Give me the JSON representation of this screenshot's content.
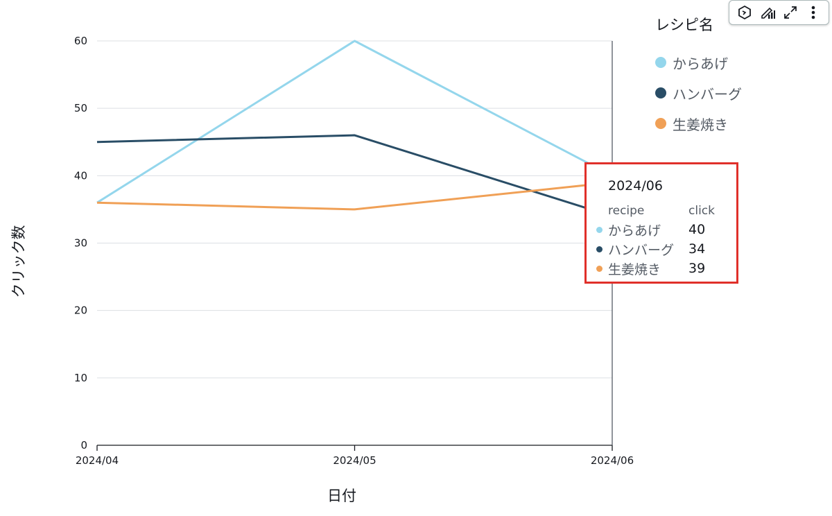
{
  "chart_data": {
    "type": "line",
    "x": [
      "2024/04",
      "2024/05",
      "2024/06"
    ],
    "xlabel": "日付",
    "ylabel": "クリック数",
    "ylim": [
      0,
      60
    ],
    "yticks": [
      "0",
      "10",
      "20",
      "30",
      "40",
      "50",
      "60"
    ],
    "grid": true,
    "legend_title": "レシピ名",
    "legend_position": "right",
    "series": [
      {
        "name": "からあげ",
        "color": "#94d6ec",
        "values": [
          36,
          60,
          40
        ]
      },
      {
        "name": "ハンバーグ",
        "color": "#294d66",
        "values": [
          45,
          46,
          34
        ]
      },
      {
        "name": "生姜焼き",
        "color": "#f0a056",
        "values": [
          36,
          35,
          39
        ]
      }
    ]
  },
  "tooltip": {
    "date": "2024/06",
    "col_recipe": "recipe",
    "col_click": "click",
    "rows": [
      {
        "recipe": "からあげ",
        "click": "40",
        "color": "#94d6ec"
      },
      {
        "recipe": "ハンバーグ",
        "click": "34",
        "color": "#294d66"
      },
      {
        "recipe": "生姜焼き",
        "click": "39",
        "color": "#f0a056"
      }
    ]
  },
  "toolbar": {
    "icons": [
      "hexagon-icon",
      "chart-edit-icon",
      "expand-icon",
      "more-vertical-icon"
    ]
  }
}
